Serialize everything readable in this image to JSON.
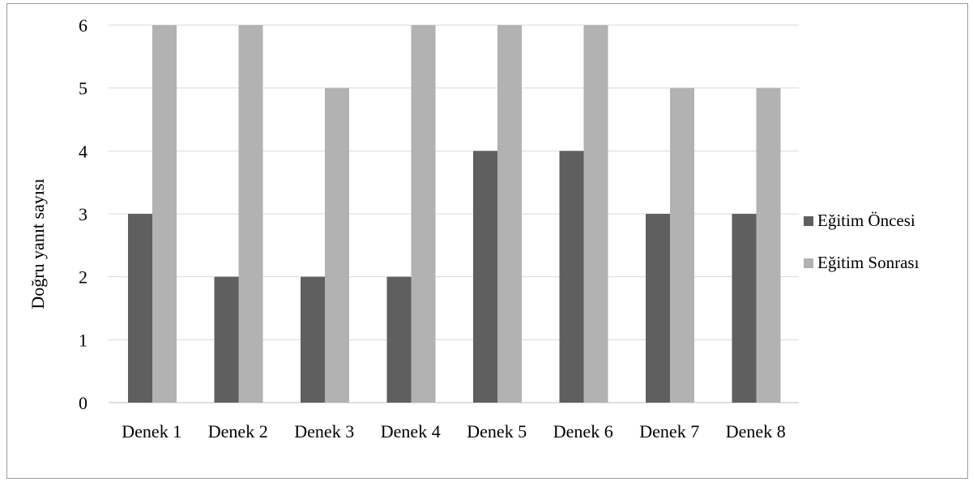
{
  "chart_data": {
    "type": "bar",
    "categories": [
      "Denek 1",
      "Denek 2",
      "Denek 3",
      "Denek 4",
      "Denek 5",
      "Denek 6",
      "Denek 7",
      "Denek 8"
    ],
    "series": [
      {
        "name": "Eğitim Öncesi",
        "values": [
          3,
          2,
          2,
          2,
          4,
          4,
          3,
          3
        ],
        "color": "#5f5f5f"
      },
      {
        "name": "Eğitim Sonrası",
        "values": [
          6,
          6,
          5,
          6,
          6,
          6,
          5,
          5
        ],
        "color": "#b2b2b2"
      }
    ],
    "title": "",
    "xlabel": "",
    "ylabel": "Doğru yanıt sayısı",
    "ylim": [
      0,
      6
    ],
    "yticks": [
      "0",
      "1",
      "2",
      "3",
      "4",
      "5",
      "6"
    ],
    "grid": true,
    "legend": "right"
  }
}
